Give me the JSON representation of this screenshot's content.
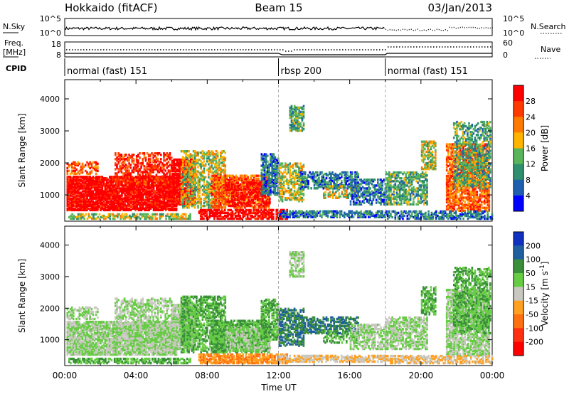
{
  "header": {
    "station": "Hokkaido (fitACF)",
    "beam": "Beam 15",
    "date": "03/Jan/2013"
  },
  "nsky_panel": {
    "left_label": "N.Sky",
    "right_label": "N.Search",
    "left_ticks": [
      "10^5",
      "10^0"
    ],
    "right_ticks": [
      "10^5",
      "10^0"
    ]
  },
  "freq_panel": {
    "left_label_top": "Freq.",
    "left_label_bottom": "[MHz]",
    "right_label": "Nave",
    "left_ticks": [
      "18",
      "8"
    ],
    "right_ticks": [
      "60",
      "0"
    ]
  },
  "cpid": {
    "label": "CPID",
    "segments": [
      {
        "label": "normal (fast) 151",
        "start_hour": 0,
        "end_hour": 12
      },
      {
        "label": "rbsp 200",
        "start_hour": 12,
        "end_hour": 18
      },
      {
        "label": "normal (fast) 151",
        "start_hour": 18,
        "end_hour": 24
      }
    ]
  },
  "chart_data": [
    {
      "type": "heatmap",
      "name": "power",
      "ylabel": "Slant Range [km]",
      "xlim": [
        0,
        24
      ],
      "ylim": [
        180,
        4600
      ],
      "y_ticks": [
        1000,
        2000,
        3000,
        4000
      ],
      "colorbar": {
        "label": "Power [dB]",
        "ticks": [
          "28",
          "24",
          "20",
          "16",
          "12",
          "8",
          "4"
        ],
        "colors": [
          "#ff0000",
          "#ff3a00",
          "#ff7a00",
          "#ffb400",
          "#5ab55a",
          "#2f8f6f",
          "#1f5fb0",
          "#0000ff"
        ]
      }
    },
    {
      "type": "heatmap",
      "name": "velocity",
      "ylabel": "Slant Range [km]",
      "xlabel": "Time UT",
      "xlim": [
        0,
        24
      ],
      "ylim": [
        180,
        4600
      ],
      "y_ticks": [
        1000,
        2000,
        3000,
        4000
      ],
      "x_tick_labels": [
        "00:00",
        "04:00",
        "08:00",
        "12:00",
        "16:00",
        "20:00",
        "00:00"
      ],
      "colorbar": {
        "label": "Velocity [m s",
        "label_sup": "-1",
        "label_close": "]",
        "ticks": [
          "200",
          "100",
          "50",
          "15",
          "-15",
          "-50",
          "-100",
          "-200"
        ],
        "colors": [
          "#1030c0",
          "#1f5f9f",
          "#3a8f3a",
          "#66cc44",
          "#c8c8c0",
          "#ffa020",
          "#ff7010",
          "#ff3010",
          "#ff0000"
        ]
      }
    }
  ],
  "colors": {
    "scan_boundary": "#aaaaaa"
  }
}
